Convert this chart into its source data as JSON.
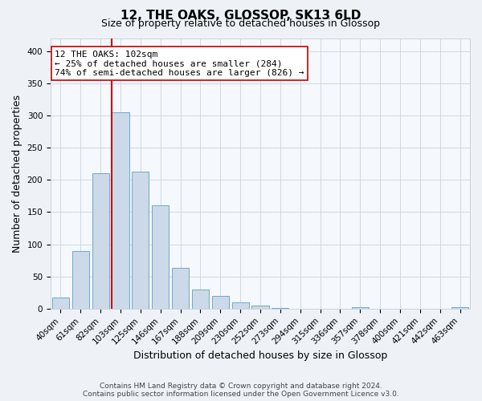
{
  "title": "12, THE OAKS, GLOSSOP, SK13 6LD",
  "subtitle": "Size of property relative to detached houses in Glossop",
  "xlabel": "Distribution of detached houses by size in Glossop",
  "ylabel": "Number of detached properties",
  "bar_labels": [
    "40sqm",
    "61sqm",
    "82sqm",
    "103sqm",
    "125sqm",
    "146sqm",
    "167sqm",
    "188sqm",
    "209sqm",
    "230sqm",
    "252sqm",
    "273sqm",
    "294sqm",
    "315sqm",
    "336sqm",
    "357sqm",
    "378sqm",
    "400sqm",
    "421sqm",
    "442sqm",
    "463sqm"
  ],
  "bar_values": [
    17,
    90,
    210,
    305,
    213,
    160,
    63,
    30,
    20,
    10,
    5,
    1,
    0,
    0,
    0,
    2,
    0,
    0,
    0,
    0,
    2
  ],
  "bar_color": "#ccd9e8",
  "bar_edge_color": "#6fa8cc",
  "vline_index": 3,
  "vline_color": "#cc0000",
  "annotation_line1": "12 THE OAKS: 102sqm",
  "annotation_line2": "← 25% of detached houses are smaller (284)",
  "annotation_line3": "74% of semi-detached houses are larger (826) →",
  "annotation_box_color": "#ffffff",
  "annotation_box_edge": "#cc0000",
  "ylim": [
    0,
    420
  ],
  "yticks": [
    0,
    50,
    100,
    150,
    200,
    250,
    300,
    350,
    400
  ],
  "footer_line1": "Contains HM Land Registry data © Crown copyright and database right 2024.",
  "footer_line2": "Contains public sector information licensed under the Open Government Licence v3.0.",
  "bg_color": "#eef2f7",
  "plot_bg_color": "#f5f8fc",
  "grid_color": "#c8d4e0",
  "title_fontsize": 11,
  "subtitle_fontsize": 9,
  "xlabel_fontsize": 9,
  "ylabel_fontsize": 9,
  "tick_fontsize": 7.5,
  "footer_fontsize": 6.5
}
